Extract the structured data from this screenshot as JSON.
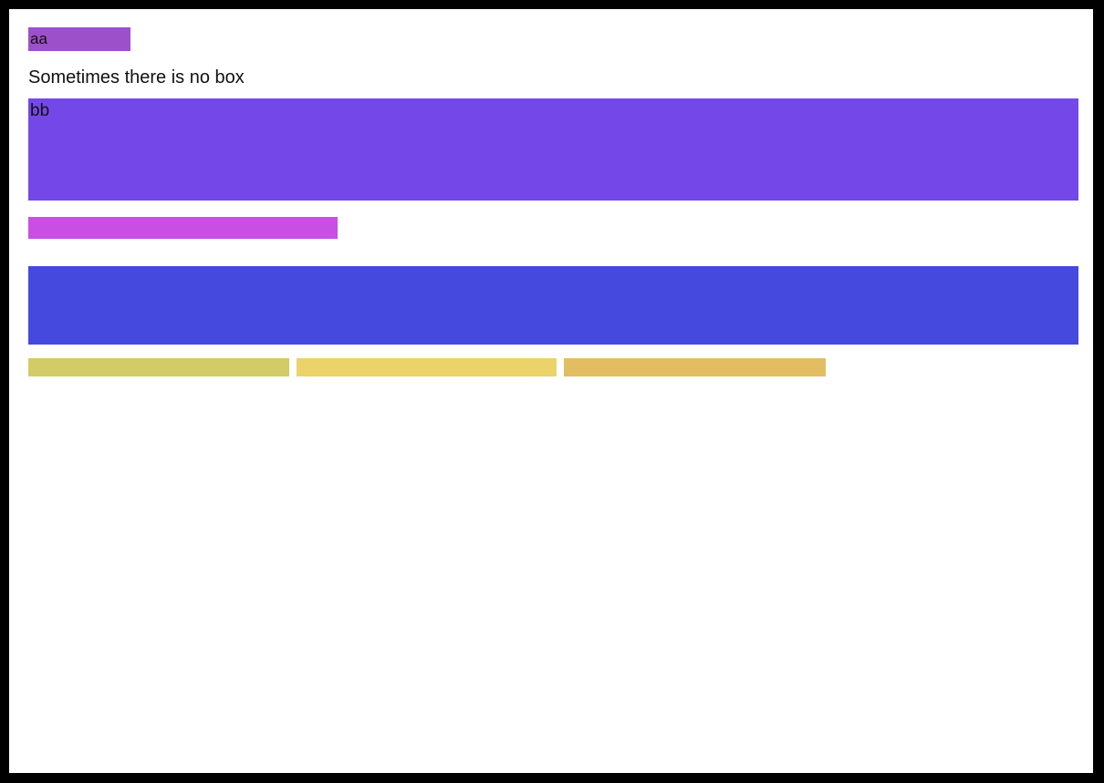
{
  "page": {
    "frame_color": "#000000",
    "canvas_color": "#ffffff"
  },
  "free_text": {
    "line1": "Sometimes there is no box"
  },
  "boxes": {
    "aa": {
      "label": "aa",
      "color": "#9c50c9"
    },
    "bb": {
      "label": "bb",
      "color": "#7448e8"
    },
    "magenta_bar": {
      "label": "",
      "color": "#c94ee3"
    },
    "blue_bar": {
      "label": "",
      "color": "#4549de"
    },
    "olive_bar": {
      "label": "",
      "color": "#d3cb66"
    },
    "yellow_bar": {
      "label": "",
      "color": "#ebd369"
    },
    "gold_bar": {
      "label": "",
      "color": "#e2bd62"
    }
  }
}
